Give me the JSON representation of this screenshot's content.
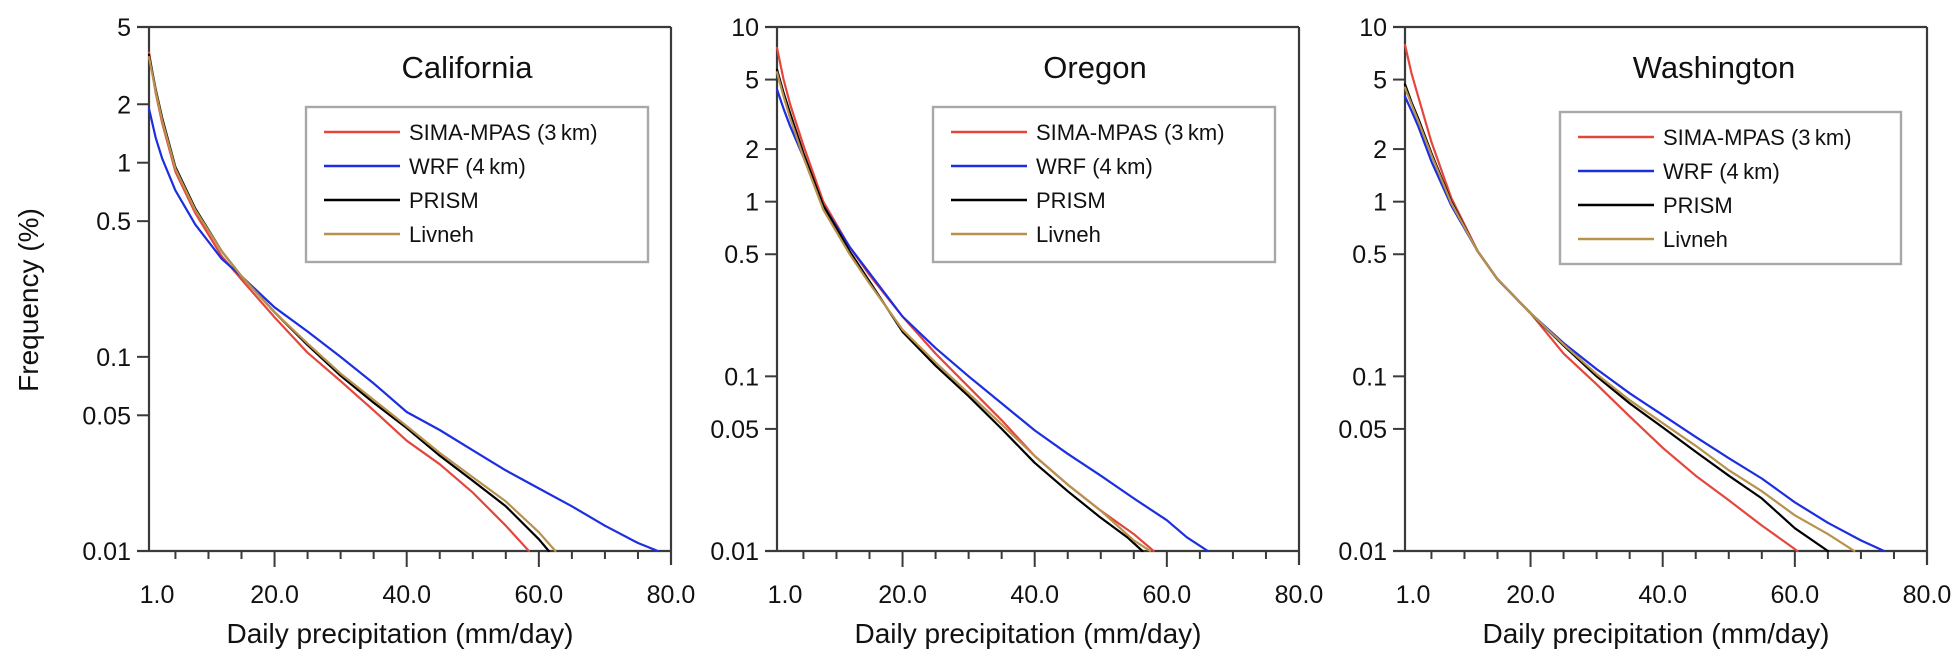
{
  "figure": {
    "ylabel": "Frequency (%)",
    "xlabel": "Daily precipitation (mm/day)"
  },
  "legend_entries": [
    "SIMA-MPAS (3 km)",
    "WRF (4 km)",
    "PRISM",
    "Livneh"
  ],
  "series_colors": {
    "SIMA-MPAS (3 km)": "#e5463c",
    "WRF (4 km)": "#1c2ee0",
    "PRISM": "#000000",
    "Livneh": "#b8924c"
  },
  "chart_data": [
    {
      "type": "line",
      "title": "California",
      "xlabel": "Daily precipitation (mm/day)",
      "ylabel": "Frequency (%)",
      "xscale": "linear",
      "yscale": "log",
      "xlim": [
        1,
        80
      ],
      "ylim": [
        0.01,
        5
      ],
      "xticks": [
        1,
        20,
        40,
        60,
        80
      ],
      "xtick_labels": [
        "1.0",
        "20.0",
        "40.0",
        "60.0",
        "80.0"
      ],
      "xminor_step": 5,
      "yticks": [
        0.01,
        0.05,
        0.1,
        0.5,
        1,
        2,
        5
      ],
      "ytick_labels": [
        "0.01",
        "0.05",
        "0.1",
        "0.5",
        "1",
        "2",
        "5"
      ],
      "grid": false,
      "legend_position": "top-right",
      "series": [
        {
          "name": "SIMA-MPAS (3 km)",
          "x": [
            1,
            2,
            3,
            5,
            8,
            12,
            15,
            20,
            25,
            30,
            35,
            40,
            45,
            50,
            55,
            58.5
          ],
          "y": [
            3.7,
            2.3,
            1.6,
            0.9,
            0.55,
            0.33,
            0.25,
            0.16,
            0.105,
            0.075,
            0.053,
            0.037,
            0.028,
            0.02,
            0.0135,
            0.01
          ]
        },
        {
          "name": "WRF (4 km)",
          "x": [
            1,
            2,
            3,
            5,
            8,
            12,
            15,
            20,
            25,
            30,
            35,
            40,
            45,
            50,
            55,
            60,
            65,
            70,
            75,
            78
          ],
          "y": [
            1.9,
            1.35,
            1.05,
            0.72,
            0.48,
            0.32,
            0.26,
            0.18,
            0.135,
            0.1,
            0.073,
            0.052,
            0.042,
            0.033,
            0.026,
            0.021,
            0.017,
            0.0135,
            0.011,
            0.01
          ]
        },
        {
          "name": "PRISM",
          "x": [
            1,
            2,
            3,
            5,
            8,
            12,
            15,
            20,
            25,
            30,
            35,
            40,
            45,
            50,
            55,
            60,
            61.5
          ],
          "y": [
            3.6,
            2.4,
            1.7,
            0.95,
            0.58,
            0.35,
            0.26,
            0.17,
            0.115,
            0.08,
            0.058,
            0.043,
            0.031,
            0.023,
            0.017,
            0.0115,
            0.01
          ]
        },
        {
          "name": "Livneh",
          "x": [
            1,
            2,
            3,
            5,
            8,
            12,
            15,
            20,
            25,
            30,
            35,
            40,
            45,
            50,
            55,
            60,
            62.5
          ],
          "y": [
            3.5,
            2.35,
            1.65,
            0.93,
            0.57,
            0.35,
            0.26,
            0.17,
            0.117,
            0.082,
            0.06,
            0.044,
            0.032,
            0.024,
            0.018,
            0.0125,
            0.01
          ]
        }
      ]
    },
    {
      "type": "line",
      "title": "Oregon",
      "xlabel": "Daily precipitation (mm/day)",
      "ylabel": "",
      "xscale": "linear",
      "yscale": "log",
      "xlim": [
        1,
        80
      ],
      "ylim": [
        0.01,
        10
      ],
      "xticks": [
        1,
        20,
        40,
        60,
        80
      ],
      "xtick_labels": [
        "1.0",
        "20.0",
        "40.0",
        "60.0",
        "80.0"
      ],
      "xminor_step": 5,
      "yticks": [
        0.01,
        0.05,
        0.1,
        0.5,
        1,
        2,
        5,
        10
      ],
      "ytick_labels": [
        "0.01",
        "0.05",
        "0.1",
        "0.5",
        "1",
        "2",
        "5",
        "10"
      ],
      "grid": false,
      "legend_position": "top-right",
      "series": [
        {
          "name": "SIMA-MPAS (3 km)",
          "x": [
            1,
            2,
            3,
            5,
            8,
            12,
            15,
            20,
            25,
            30,
            35,
            40,
            45,
            50,
            55,
            58
          ],
          "y": [
            7.6,
            5.0,
            3.6,
            2.1,
            1.0,
            0.55,
            0.38,
            0.22,
            0.135,
            0.087,
            0.056,
            0.035,
            0.024,
            0.017,
            0.0125,
            0.01
          ]
        },
        {
          "name": "WRF (4 km)",
          "x": [
            1,
            2,
            3,
            5,
            8,
            12,
            15,
            20,
            25,
            30,
            35,
            40,
            45,
            50,
            55,
            60,
            63,
            66.2
          ],
          "y": [
            4.4,
            3.4,
            2.7,
            1.8,
            0.95,
            0.55,
            0.39,
            0.22,
            0.145,
            0.1,
            0.07,
            0.049,
            0.036,
            0.027,
            0.02,
            0.015,
            0.012,
            0.01
          ]
        },
        {
          "name": "PRISM",
          "x": [
            1,
            2,
            3,
            5,
            8,
            12,
            15,
            20,
            25,
            30,
            35,
            40,
            45,
            50,
            54,
            56.3
          ],
          "y": [
            5.7,
            4.2,
            3.2,
            1.9,
            0.95,
            0.52,
            0.35,
            0.18,
            0.115,
            0.077,
            0.05,
            0.032,
            0.022,
            0.0155,
            0.012,
            0.01
          ]
        },
        {
          "name": "Livneh",
          "x": [
            1,
            2,
            3,
            5,
            8,
            12,
            15,
            20,
            25,
            30,
            35,
            40,
            45,
            50,
            55,
            57.5
          ],
          "y": [
            5.5,
            4.0,
            3.0,
            1.8,
            0.9,
            0.5,
            0.34,
            0.185,
            0.12,
            0.08,
            0.053,
            0.035,
            0.024,
            0.017,
            0.0115,
            0.01
          ]
        }
      ]
    },
    {
      "type": "line",
      "title": "Washington",
      "xlabel": "Daily precipitation (mm/day)",
      "ylabel": "",
      "xscale": "linear",
      "yscale": "log",
      "xlim": [
        1,
        80
      ],
      "ylim": [
        0.01,
        10
      ],
      "xticks": [
        1,
        20,
        40,
        60,
        80
      ],
      "xtick_labels": [
        "1.0",
        "20.0",
        "40.0",
        "60.0",
        "80.0"
      ],
      "xminor_step": 5,
      "yticks": [
        0.01,
        0.05,
        0.1,
        0.5,
        1,
        2,
        5,
        10
      ],
      "ytick_labels": [
        "0.01",
        "0.05",
        "0.1",
        "0.5",
        "1",
        "2",
        "5",
        "10"
      ],
      "grid": false,
      "legend_position": "top-right",
      "series": [
        {
          "name": "SIMA-MPAS (3 km)",
          "x": [
            1,
            2,
            3,
            5,
            8,
            12,
            15,
            20,
            25,
            30,
            35,
            40,
            45,
            50,
            55,
            60.4
          ],
          "y": [
            7.9,
            5.4,
            4.0,
            2.2,
            1.05,
            0.52,
            0.36,
            0.23,
            0.135,
            0.09,
            0.059,
            0.039,
            0.027,
            0.0195,
            0.014,
            0.01
          ]
        },
        {
          "name": "WRF (4 km)",
          "x": [
            1,
            2,
            3,
            5,
            8,
            12,
            15,
            20,
            25,
            30,
            35,
            40,
            45,
            50,
            55,
            60,
            65,
            70,
            73.5
          ],
          "y": [
            4.0,
            3.3,
            2.7,
            1.7,
            0.95,
            0.52,
            0.36,
            0.23,
            0.155,
            0.11,
            0.08,
            0.06,
            0.045,
            0.034,
            0.026,
            0.019,
            0.0145,
            0.0115,
            0.01
          ]
        },
        {
          "name": "PRISM",
          "x": [
            1,
            2,
            3,
            5,
            8,
            12,
            15,
            20,
            25,
            30,
            35,
            40,
            45,
            50,
            55,
            60,
            65
          ],
          "y": [
            4.7,
            3.7,
            3.0,
            1.9,
            1.0,
            0.52,
            0.36,
            0.23,
            0.15,
            0.1,
            0.07,
            0.051,
            0.037,
            0.027,
            0.02,
            0.0135,
            0.01
          ]
        },
        {
          "name": "Livneh",
          "x": [
            1,
            2,
            3,
            5,
            8,
            12,
            15,
            20,
            25,
            30,
            35,
            40,
            45,
            50,
            55,
            60,
            65,
            69
          ],
          "y": [
            4.5,
            3.6,
            2.9,
            1.85,
            0.98,
            0.52,
            0.36,
            0.23,
            0.152,
            0.103,
            0.073,
            0.054,
            0.04,
            0.029,
            0.022,
            0.016,
            0.0125,
            0.01
          ]
        }
      ]
    }
  ]
}
